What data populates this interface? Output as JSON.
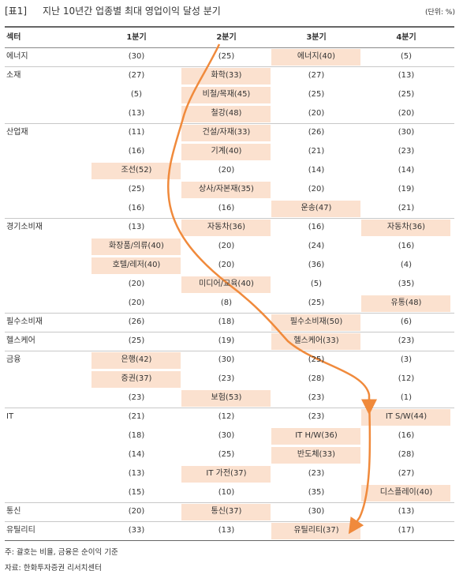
{
  "header": {
    "label": "[표1]",
    "title": "지난 10년간 업종별 최대 영업이익 달성 분기",
    "unit": "(단위: %)"
  },
  "table": {
    "columns": [
      "섹터",
      "1분기",
      "2분기",
      "3분기",
      "4분기"
    ],
    "groups": [
      {
        "sector": "에너지",
        "rows": [
          [
            "(30)",
            "(25)",
            "에너지(40)",
            "(5)"
          ]
        ]
      },
      {
        "sector": "소재",
        "rows": [
          [
            "(27)",
            "화학(33)",
            "(27)",
            "(13)"
          ],
          [
            "(5)",
            "비철/목재(45)",
            "(25)",
            "(25)"
          ],
          [
            "(13)",
            "철강(48)",
            "(20)",
            "(20)"
          ]
        ]
      },
      {
        "sector": "산업재",
        "rows": [
          [
            "(11)",
            "건설/자재(33)",
            "(26)",
            "(30)"
          ],
          [
            "(16)",
            "기계(40)",
            "(21)",
            "(23)"
          ],
          [
            "조선(52)",
            "(20)",
            "(14)",
            "(14)"
          ],
          [
            "(25)",
            "상사/자본재(35)",
            "(20)",
            "(19)"
          ],
          [
            "(16)",
            "(16)",
            "운송(47)",
            "(21)"
          ]
        ]
      },
      {
        "sector": "경기소비재",
        "rows": [
          [
            "(13)",
            "자동차(36)",
            "(16)",
            "자동차(36)"
          ],
          [
            "화장품/의류(40)",
            "(20)",
            "(24)",
            "(16)"
          ],
          [
            "호텔/레저(40)",
            "(20)",
            "(36)",
            "(4)"
          ],
          [
            "(20)",
            "미디어/교육(40)",
            "(5)",
            "(35)"
          ],
          [
            "(20)",
            "(8)",
            "(25)",
            "유통(48)"
          ]
        ]
      },
      {
        "sector": "필수소비재",
        "rows": [
          [
            "(26)",
            "(18)",
            "필수소비재(50)",
            "(6)"
          ]
        ]
      },
      {
        "sector": "헬스케어",
        "rows": [
          [
            "(25)",
            "(19)",
            "헬스케어(33)",
            "(23)"
          ]
        ]
      },
      {
        "sector": "금융",
        "rows": [
          [
            "은행(42)",
            "(30)",
            "(25)",
            "(3)"
          ],
          [
            "증권(37)",
            "(23)",
            "(28)",
            "(12)"
          ],
          [
            "(23)",
            "보험(53)",
            "(23)",
            "(1)"
          ]
        ]
      },
      {
        "sector": "IT",
        "rows": [
          [
            "(21)",
            "(12)",
            "(23)",
            "IT S/W(44)"
          ],
          [
            "(18)",
            "(30)",
            "IT H/W(36)",
            "(16)"
          ],
          [
            "(14)",
            "(25)",
            "반도체(33)",
            "(28)"
          ],
          [
            "(13)",
            "IT 가전(37)",
            "(23)",
            "(27)"
          ],
          [
            "(15)",
            "(10)",
            "(35)",
            "디스플레이(40)"
          ]
        ]
      },
      {
        "sector": "통신",
        "rows": [
          [
            "(20)",
            "통신(37)",
            "(30)",
            "(13)"
          ]
        ]
      },
      {
        "sector": "유틸리티",
        "rows": [
          [
            "(33)",
            "(13)",
            "유틸리티(37)",
            "(17)"
          ]
        ]
      }
    ]
  },
  "notes": [
    "주: 괄호는 비율, 금융은 순이익 기준",
    "자료: 한화투자증권 리서치센터"
  ]
}
